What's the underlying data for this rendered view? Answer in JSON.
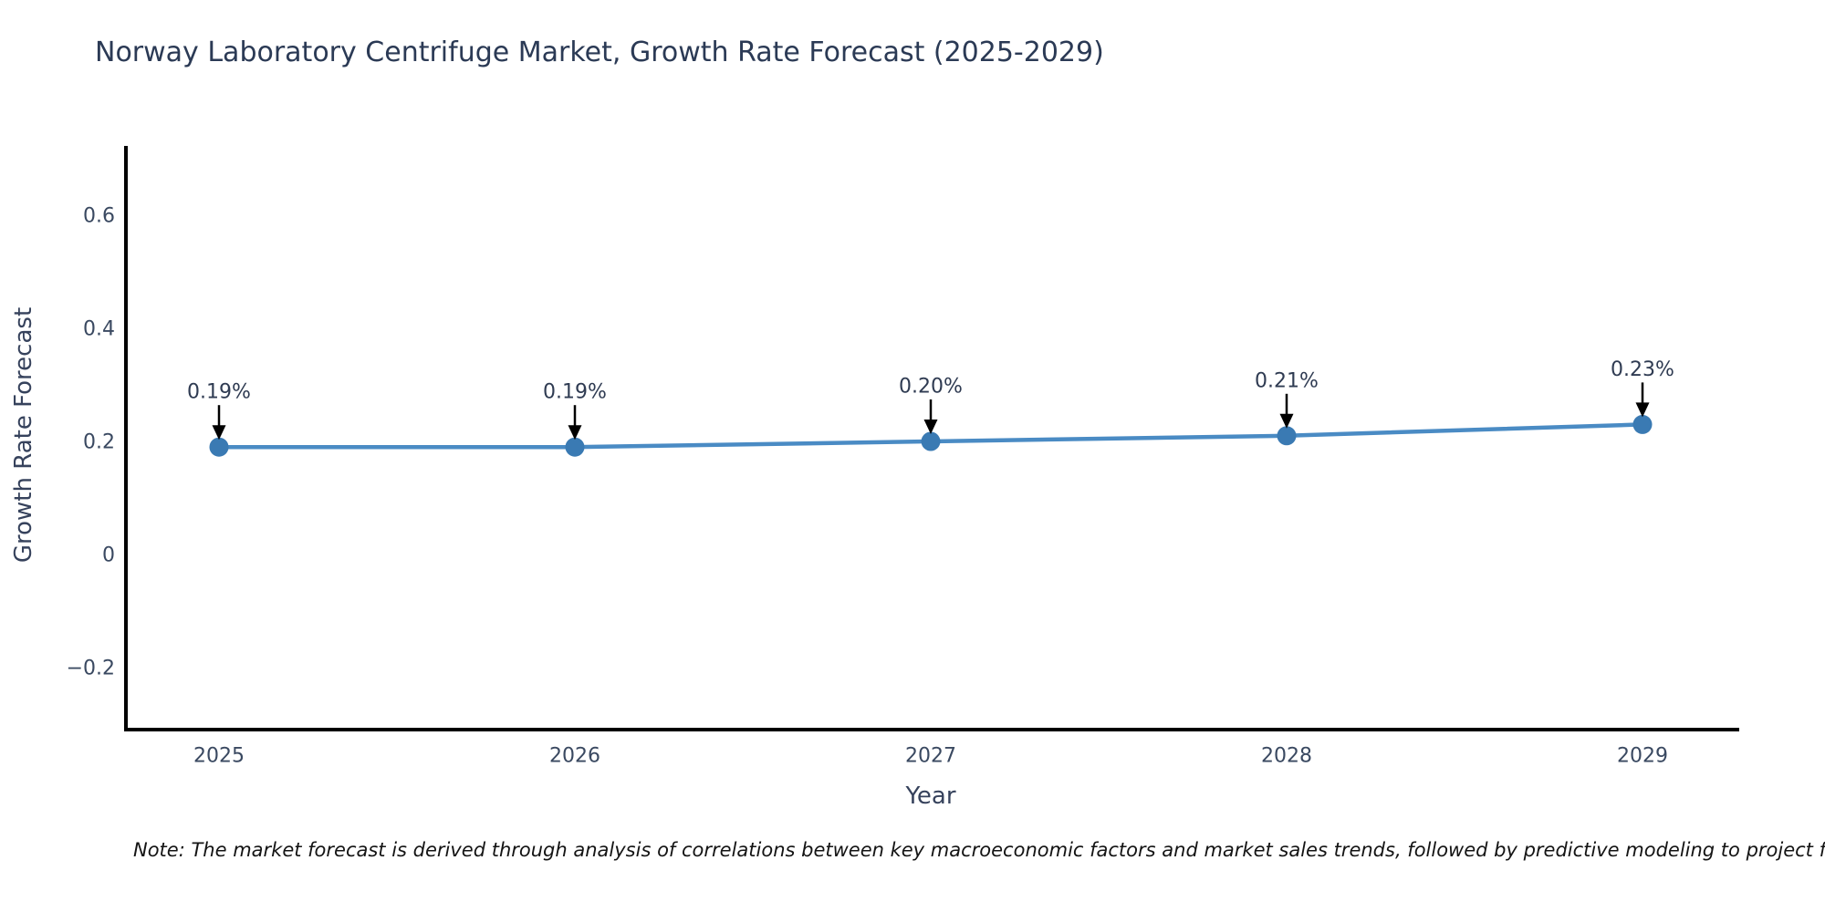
{
  "title": "Norway Laboratory Centrifuge Market, Growth Rate Forecast (2025-2029)",
  "note": "Note: The market forecast is derived through analysis of correlations between key macroeconomic factors and market sales trends, followed by predictive modeling to project future sales",
  "chart_data": {
    "type": "line",
    "title": "Norway Laboratory Centrifuge Market, Growth Rate Forecast (2025-2029)",
    "xlabel": "Year",
    "ylabel": "Growth Rate Forecast",
    "x": [
      2025,
      2026,
      2027,
      2028,
      2029
    ],
    "xticks": [
      "2025",
      "2026",
      "2027",
      "2028",
      "2029"
    ],
    "series": [
      {
        "name": "Growth Rate Forecast",
        "values": [
          0.19,
          0.19,
          0.2,
          0.21,
          0.23
        ]
      }
    ],
    "annotations": [
      "0.19%",
      "0.19%",
      "0.20%",
      "0.21%",
      "0.23%"
    ],
    "yticks": [
      -0.2,
      0,
      0.2,
      0.4,
      0.6
    ],
    "ylim": [
      -0.31,
      0.72
    ],
    "grid": false,
    "legend": false,
    "colors": {
      "line": "#4a8bc4",
      "marker": "#3a7ab3",
      "axis": "#000000",
      "arrow": "#000000",
      "title_text": "#2b3a55",
      "tick_text": "#3a4961",
      "annotation_text": "#2f3b52",
      "note_text": "#141414",
      "background": "#ffffff"
    }
  }
}
